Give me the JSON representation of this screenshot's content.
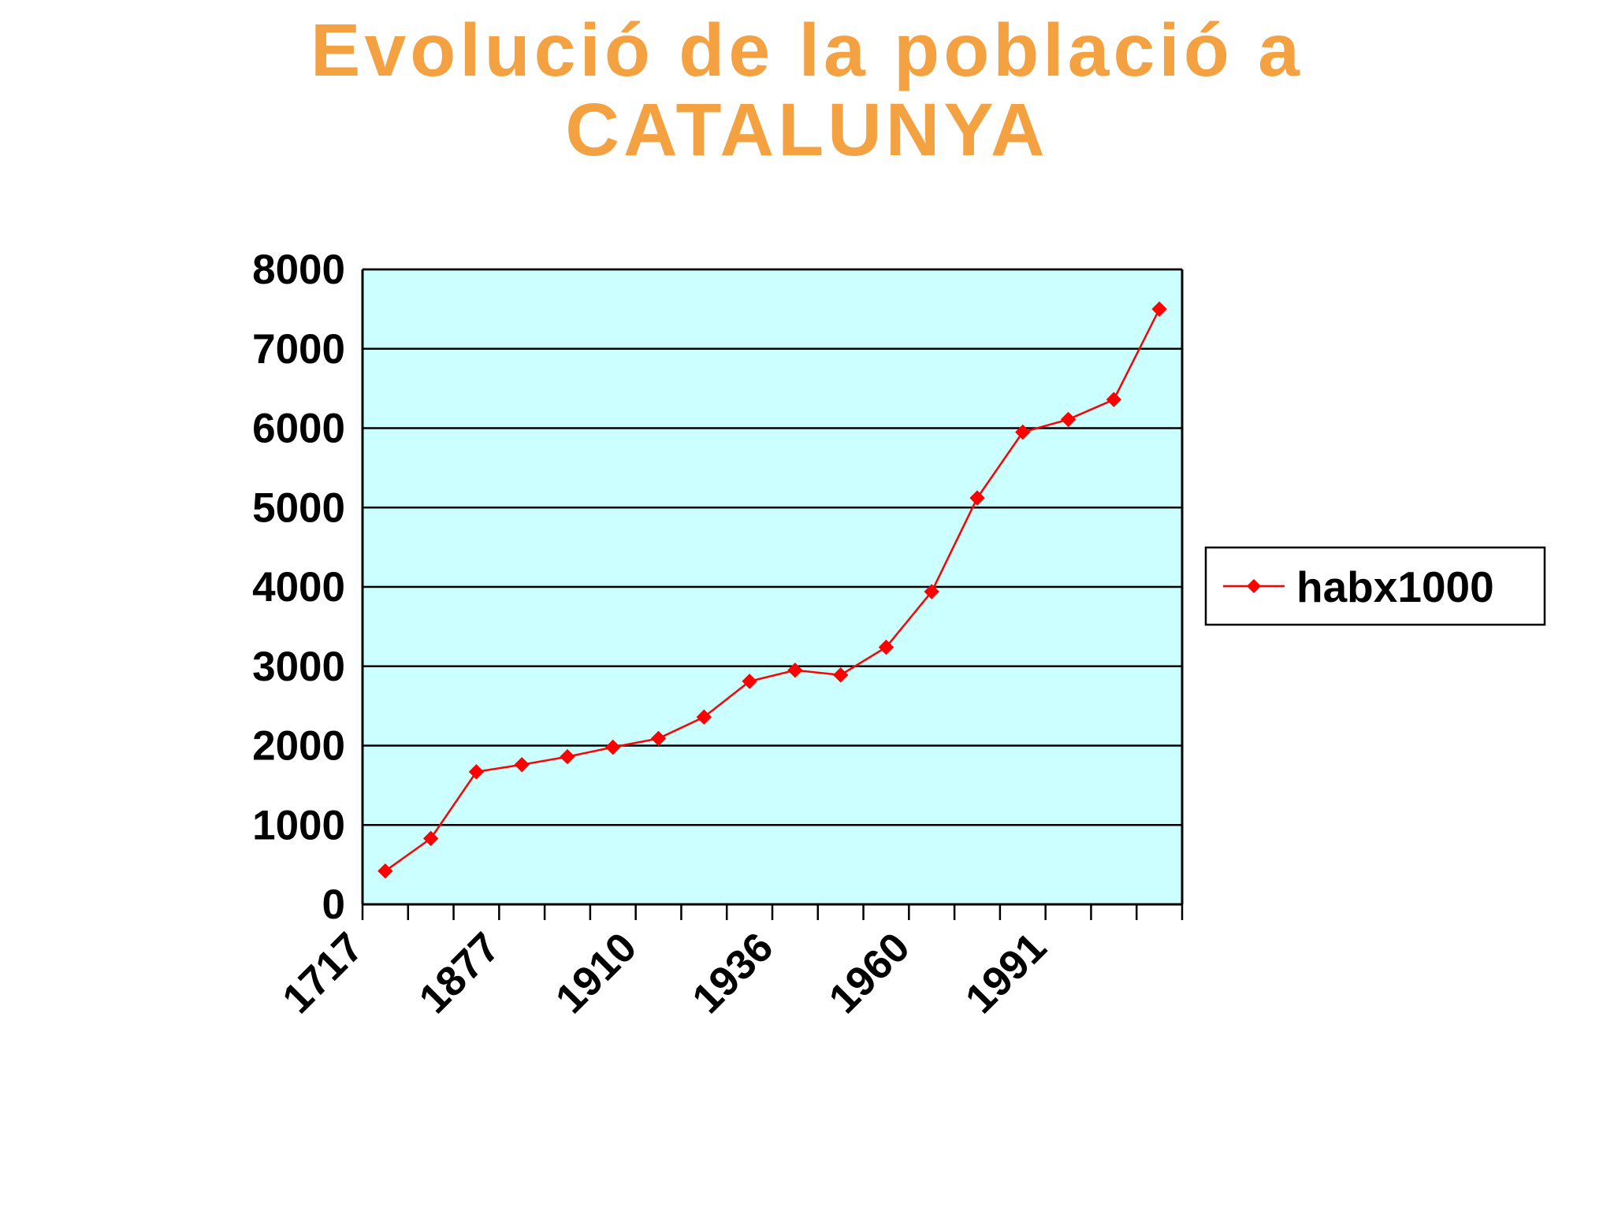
{
  "title_line1": "Evolució de la població a",
  "title_line2": "CATALUNYA",
  "chart_data": {
    "type": "line",
    "title": "Evolució de la població a CATALUNYA",
    "xlabel": "",
    "ylabel": "",
    "ylim": [
      0,
      8000
    ],
    "yticks": [
      0,
      1000,
      2000,
      3000,
      4000,
      5000,
      6000,
      7000,
      8000
    ],
    "x_tick_labels": [
      {
        "label": "1717",
        "index": 0
      },
      {
        "label": "1877",
        "index": 3
      },
      {
        "label": "1910",
        "index": 6
      },
      {
        "label": "1936",
        "index": 9
      },
      {
        "label": "1960",
        "index": 12
      },
      {
        "label": "1991",
        "index": 15
      }
    ],
    "grid": true,
    "legend_position": "right",
    "plot_background": "#ccffff",
    "series": [
      {
        "name": "habx1000",
        "color": "#ff0000",
        "marker": "diamond",
        "values": [
          420,
          830,
          1670,
          1760,
          1860,
          1980,
          2090,
          2360,
          2810,
          2950,
          2890,
          3240,
          3940,
          5120,
          5950,
          6110,
          6360,
          7500
        ]
      }
    ]
  }
}
